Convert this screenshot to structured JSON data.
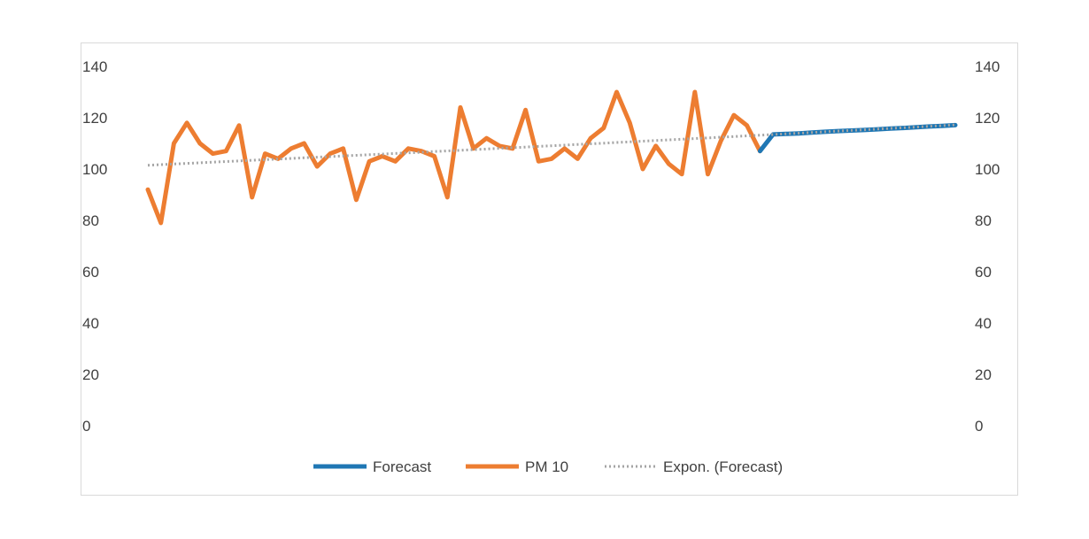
{
  "chart_data": {
    "type": "line",
    "title": "",
    "xlabel": "",
    "ylabel": "",
    "ylim": [
      0,
      140
    ],
    "y_ticks": [
      0,
      20,
      40,
      60,
      80,
      100,
      120,
      140
    ],
    "y_ticks_labels": [
      "0",
      "20",
      "40",
      "60",
      "80",
      "100",
      "120",
      "140"
    ],
    "secondary_y_axis": true,
    "grid": false,
    "legend_position": "bottom",
    "x_count": 63,
    "series": [
      {
        "name": "PM 10",
        "color": "#ED7D31",
        "x_start": 0,
        "values": [
          92,
          79,
          110,
          118,
          110,
          106,
          107,
          117,
          89,
          106,
          104,
          108,
          110,
          101,
          106,
          108,
          88,
          103,
          105,
          103,
          108,
          107,
          105,
          89,
          124,
          108,
          112,
          109,
          108,
          123,
          103,
          104,
          108,
          104,
          112,
          116,
          130,
          118,
          100,
          109,
          102,
          98,
          130,
          98,
          111,
          121,
          117,
          107
        ]
      },
      {
        "name": "Forecast",
        "color": "#1F77B4",
        "x_start": 47,
        "values": [
          107,
          113.5,
          113.7,
          113.9,
          114.2,
          114.5,
          114.8,
          115.0,
          115.2,
          115.5,
          115.8,
          116.0,
          116.3,
          116.6,
          116.8,
          117.1
        ]
      }
    ],
    "trendline": {
      "name": "Expon. (Forecast)",
      "color": "#A5A5A5",
      "style": "dotted",
      "x_start": 0,
      "x_end": 62,
      "start_value": 101.5,
      "end_value": 117.2
    },
    "legend": [
      "Forecast",
      "PM 10",
      "Expon. (Forecast)"
    ]
  }
}
